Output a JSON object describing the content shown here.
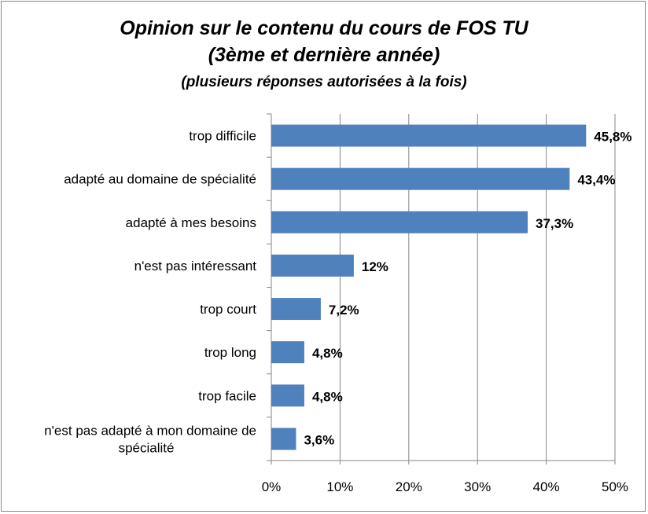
{
  "chart_data": {
    "type": "bar",
    "orientation": "horizontal",
    "title": "Opinion sur le contenu du cours de FOS TU",
    "title_line2": "(3ème et dernière année)",
    "subtitle": "(plusieurs réponses autorisées à la fois)",
    "categories": [
      [
        "trop difficile"
      ],
      [
        "adapté au domaine de spécialité"
      ],
      [
        "adapté à mes besoins"
      ],
      [
        "n'est pas intéressant"
      ],
      [
        "trop court"
      ],
      [
        "trop long"
      ],
      [
        "trop facile"
      ],
      [
        "n'est pas adapté à mon domaine de",
        "spécialité"
      ]
    ],
    "values": [
      45.8,
      43.4,
      37.3,
      12,
      7.2,
      4.8,
      4.8,
      3.6
    ],
    "data_labels": [
      "45,8%",
      "43,4%",
      "37,3%",
      "12%",
      "7,2%",
      "4,8%",
      "4,8%",
      "3,6%"
    ],
    "xlim": [
      0,
      50
    ],
    "xticks": [
      0,
      10,
      20,
      30,
      40,
      50
    ],
    "xtick_labels": [
      "0%",
      "10%",
      "20%",
      "30%",
      "40%",
      "50%"
    ],
    "grid": "vertical",
    "legend": "none",
    "bar_color": "#4F81BD",
    "grid_color": "#868686"
  }
}
